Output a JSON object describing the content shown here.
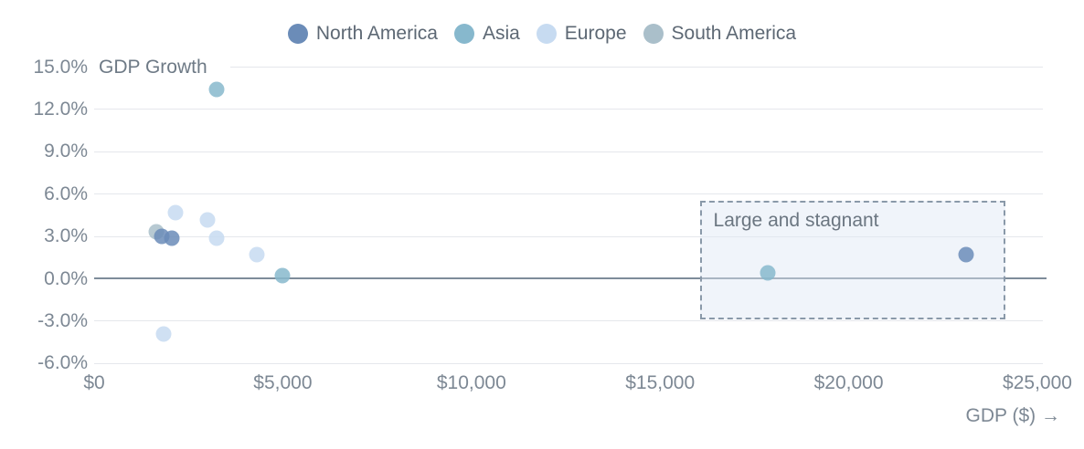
{
  "legend": {
    "items": [
      {
        "label": "North America",
        "color": "#6b8cb8"
      },
      {
        "label": "Asia",
        "color": "#87b8cd"
      },
      {
        "label": "Europe",
        "color": "#c7dbf1"
      },
      {
        "label": "South America",
        "color": "#aabfca"
      }
    ]
  },
  "axis": {
    "y_title": "GDP Growth",
    "x_title": "GDP ($) →"
  },
  "chart_data": {
    "type": "scatter",
    "xlabel": "GDP ($)",
    "ylabel": "GDP Growth",
    "xlim": [
      0,
      25000
    ],
    "ylim": [
      -6,
      15
    ],
    "grid": "horizontal-only",
    "legend_position": "top-center",
    "x_ticks": [
      {
        "value": 0,
        "label": "$0"
      },
      {
        "value": 5000,
        "label": "$5,000"
      },
      {
        "value": 10000,
        "label": "$10,000"
      },
      {
        "value": 15000,
        "label": "$15,000"
      },
      {
        "value": 20000,
        "label": "$20,000"
      },
      {
        "value": 25000,
        "label": "$25,000"
      }
    ],
    "y_ticks": [
      {
        "value": 15,
        "label": "15.0%"
      },
      {
        "value": 12,
        "label": "12.0%"
      },
      {
        "value": 9,
        "label": "9.0%"
      },
      {
        "value": 6,
        "label": "6.0%"
      },
      {
        "value": 3,
        "label": "3.0%"
      },
      {
        "value": 0,
        "label": "0.0%"
      },
      {
        "value": -3,
        "label": "-3.0%"
      },
      {
        "value": -6,
        "label": "-6.0%"
      }
    ],
    "series": [
      {
        "name": "North America",
        "color": "#6b8cb8",
        "points": [
          {
            "gdp": 1800,
            "growth": 3.0
          },
          {
            "gdp": 2050,
            "growth": 2.9
          },
          {
            "gdp": 23100,
            "growth": 1.7
          }
        ]
      },
      {
        "name": "Asia",
        "color": "#87b8cd",
        "points": [
          {
            "gdp": 3250,
            "growth": 13.4
          },
          {
            "gdp": 5000,
            "growth": 0.2
          },
          {
            "gdp": 17850,
            "growth": 0.4
          }
        ]
      },
      {
        "name": "Europe",
        "color": "#c7dbf1",
        "points": [
          {
            "gdp": 2150,
            "growth": 4.7
          },
          {
            "gdp": 3000,
            "growth": 4.2
          },
          {
            "gdp": 3250,
            "growth": 2.9
          },
          {
            "gdp": 4300,
            "growth": 1.7
          },
          {
            "gdp": 1850,
            "growth": -3.9
          }
        ]
      },
      {
        "name": "South America",
        "color": "#aabfca",
        "points": [
          {
            "gdp": 1650,
            "growth": 3.3
          }
        ]
      }
    ],
    "annotation": {
      "label": "Large and stagnant",
      "x_range": [
        16050,
        24150
      ],
      "y_range": [
        -2.9,
        5.5
      ]
    }
  }
}
